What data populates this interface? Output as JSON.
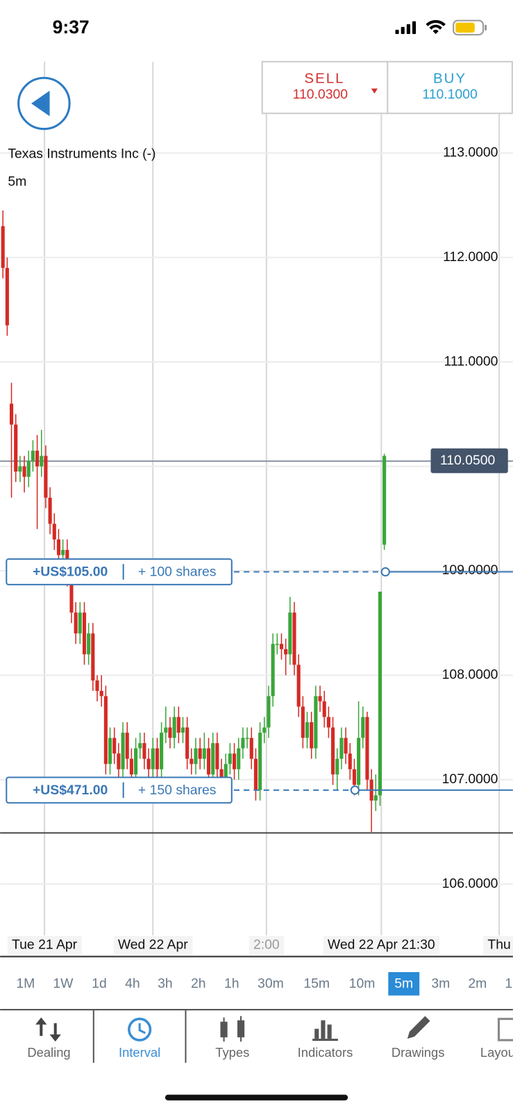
{
  "status": {
    "time": "9:37"
  },
  "quote": {
    "sell_label": "SELL",
    "sell_price": "110.0300",
    "buy_label": "BUY",
    "buy_price": "110.1000"
  },
  "chart_data": {
    "type": "candlestick",
    "title": "Texas Instruments Inc (-)",
    "interval": "5m",
    "up_color": "#3aa63a",
    "down_color": "#d42a25",
    "grid": true,
    "ylim": [
      105.51,
      113.875
    ],
    "yticks": [
      {
        "value": 106,
        "label": "106.0000"
      },
      {
        "value": 107,
        "label": "107.0000"
      },
      {
        "value": 108,
        "label": "108.0000"
      },
      {
        "value": 109,
        "label": "109.0000"
      },
      {
        "value": 110,
        "label": "110.0000"
      },
      {
        "value": 111,
        "label": "111.0000"
      },
      {
        "value": 112,
        "label": "112.0000"
      },
      {
        "value": 113,
        "label": "113.0000"
      }
    ],
    "xticks": [
      {
        "value": 9.7,
        "label": "Tue 21 Apr"
      },
      {
        "value": 35,
        "label": "Wed 22 Apr"
      },
      {
        "value": 61.5,
        "label": "2:00"
      },
      {
        "value": 88.3,
        "label": "Wed 22 Apr 21:30"
      },
      {
        "value": 115.8,
        "label": "Thu"
      }
    ],
    "current_price": {
      "value": 110.05,
      "label": "110.0500"
    },
    "level_line": 106.49,
    "positions": [
      {
        "pnl": "+US$105.00",
        "size": "+ 100 shares",
        "price": 108.99
      },
      {
        "pnl": "+US$471.00",
        "size": "+ 150 shares",
        "price": 106.9
      }
    ],
    "candles": [
      [
        112.3,
        112.45,
        111.8,
        111.9
      ],
      [
        111.9,
        112.0,
        111.25,
        111.35
      ],
      [
        110.6,
        110.8,
        109.7,
        110.4
      ],
      [
        110.4,
        110.5,
        109.85,
        109.95
      ],
      [
        109.95,
        110.1,
        109.85,
        110.0
      ],
      [
        110.0,
        110.1,
        109.75,
        109.9
      ],
      [
        109.9,
        110.15,
        109.8,
        110.05
      ],
      [
        110.05,
        110.25,
        109.95,
        110.15
      ],
      [
        110.15,
        110.3,
        109.4,
        110.0
      ],
      [
        110.0,
        110.35,
        109.9,
        110.1
      ],
      [
        110.1,
        110.2,
        109.6,
        109.7
      ],
      [
        109.7,
        109.8,
        109.35,
        109.45
      ],
      [
        109.45,
        109.55,
        109.2,
        109.3
      ],
      [
        109.3,
        109.4,
        109.05,
        109.15
      ],
      [
        109.15,
        109.3,
        109.05,
        109.2
      ],
      [
        109.2,
        109.3,
        108.85,
        108.95
      ],
      [
        108.95,
        109.05,
        108.5,
        108.6
      ],
      [
        108.6,
        108.7,
        108.3,
        108.4
      ],
      [
        108.4,
        108.7,
        108.3,
        108.6
      ],
      [
        108.6,
        108.7,
        108.1,
        108.2
      ],
      [
        108.2,
        108.5,
        108.1,
        108.4
      ],
      [
        108.4,
        108.5,
        107.85,
        107.95
      ],
      [
        107.95,
        108.0,
        107.75,
        107.85
      ],
      [
        107.85,
        108.0,
        107.7,
        107.8
      ],
      [
        107.8,
        107.9,
        107.05,
        107.15
      ],
      [
        107.15,
        107.5,
        107.05,
        107.4
      ],
      [
        107.4,
        107.5,
        107.15,
        107.25
      ],
      [
        107.25,
        107.35,
        107.0,
        107.1
      ],
      [
        107.1,
        107.55,
        107.0,
        107.45
      ],
      [
        107.45,
        107.55,
        107.1,
        107.2
      ],
      [
        107.2,
        107.3,
        106.95,
        107.05
      ],
      [
        107.05,
        107.4,
        106.95,
        107.3
      ],
      [
        107.3,
        107.45,
        107.2,
        107.35
      ],
      [
        107.35,
        107.45,
        107.1,
        107.2
      ],
      [
        107.2,
        107.3,
        107.0,
        107.1
      ],
      [
        107.1,
        107.4,
        107.0,
        107.3
      ],
      [
        107.3,
        107.4,
        107.0,
        107.1
      ],
      [
        107.1,
        107.55,
        107.0,
        107.45
      ],
      [
        107.45,
        107.7,
        107.35,
        107.5
      ],
      [
        107.5,
        107.6,
        107.3,
        107.4
      ],
      [
        107.4,
        107.7,
        107.3,
        107.6
      ],
      [
        107.6,
        107.7,
        107.35,
        107.45
      ],
      [
        107.45,
        107.6,
        107.35,
        107.5
      ],
      [
        107.5,
        107.6,
        107.1,
        107.2
      ],
      [
        107.2,
        107.3,
        107.05,
        107.15
      ],
      [
        107.15,
        107.4,
        107.05,
        107.3
      ],
      [
        107.3,
        107.4,
        107.1,
        107.2
      ],
      [
        107.2,
        107.45,
        107.1,
        107.3
      ],
      [
        107.3,
        107.4,
        106.95,
        107.05
      ],
      [
        107.05,
        107.45,
        106.95,
        107.35
      ],
      [
        107.35,
        107.45,
        107.0,
        107.1
      ],
      [
        107.1,
        107.2,
        106.9,
        107.0
      ],
      [
        107.0,
        107.25,
        106.9,
        107.15
      ],
      [
        107.15,
        107.35,
        107.05,
        107.25
      ],
      [
        107.25,
        107.35,
        107.0,
        107.1
      ],
      [
        107.1,
        107.4,
        107.0,
        107.3
      ],
      [
        107.3,
        107.5,
        107.2,
        107.4
      ],
      [
        107.4,
        107.5,
        107.3,
        107.4
      ],
      [
        107.4,
        107.5,
        107.1,
        107.2
      ],
      [
        107.2,
        107.3,
        106.8,
        106.9
      ],
      [
        106.9,
        107.55,
        106.8,
        107.45
      ],
      [
        107.45,
        107.6,
        107.35,
        107.5
      ],
      [
        107.5,
        107.9,
        107.4,
        107.8
      ],
      [
        107.8,
        108.4,
        107.7,
        108.3
      ],
      [
        108.3,
        108.4,
        108.2,
        108.3
      ],
      [
        108.3,
        108.4,
        108.15,
        108.25
      ],
      [
        108.25,
        108.35,
        108.0,
        108.2
      ],
      [
        108.2,
        108.75,
        108.1,
        108.6
      ],
      [
        108.6,
        108.7,
        108.0,
        108.1
      ],
      [
        108.1,
        108.2,
        107.6,
        107.7
      ],
      [
        107.7,
        107.8,
        107.3,
        107.4
      ],
      [
        107.4,
        107.65,
        107.3,
        107.55
      ],
      [
        107.55,
        107.65,
        107.2,
        107.3
      ],
      [
        107.3,
        107.9,
        107.2,
        107.8
      ],
      [
        107.8,
        107.9,
        107.65,
        107.75
      ],
      [
        107.75,
        107.85,
        107.5,
        107.6
      ],
      [
        107.6,
        107.7,
        107.4,
        107.5
      ],
      [
        107.5,
        107.6,
        106.95,
        107.05
      ],
      [
        107.05,
        107.3,
        106.9,
        107.2
      ],
      [
        107.2,
        107.5,
        107.1,
        107.4
      ],
      [
        107.4,
        107.5,
        107.15,
        107.25
      ],
      [
        107.25,
        107.35,
        107.0,
        107.1
      ],
      [
        107.1,
        107.2,
        106.85,
        106.95
      ],
      [
        106.95,
        107.75,
        106.85,
        107.4
      ],
      [
        107.4,
        107.7,
        107.3,
        107.6
      ],
      [
        107.6,
        107.65,
        106.9,
        107.0
      ],
      [
        107.0,
        107.1,
        106.5,
        106.8
      ],
      [
        106.8,
        107.05,
        106.7,
        106.85
      ],
      [
        106.85,
        108.8,
        106.75,
        108.8
      ],
      [
        109.25,
        110.12,
        109.2,
        110.1
      ]
    ]
  },
  "intervals": {
    "items": [
      "1M",
      "1W",
      "1d",
      "4h",
      "3h",
      "2h",
      "1h",
      "30m",
      "15m",
      "10m",
      "5m",
      "3m",
      "2m",
      "1"
    ],
    "selected_index": 10
  },
  "tabs": [
    "Dealing",
    "Interval",
    "Types",
    "Indicators",
    "Drawings",
    "Layout"
  ]
}
